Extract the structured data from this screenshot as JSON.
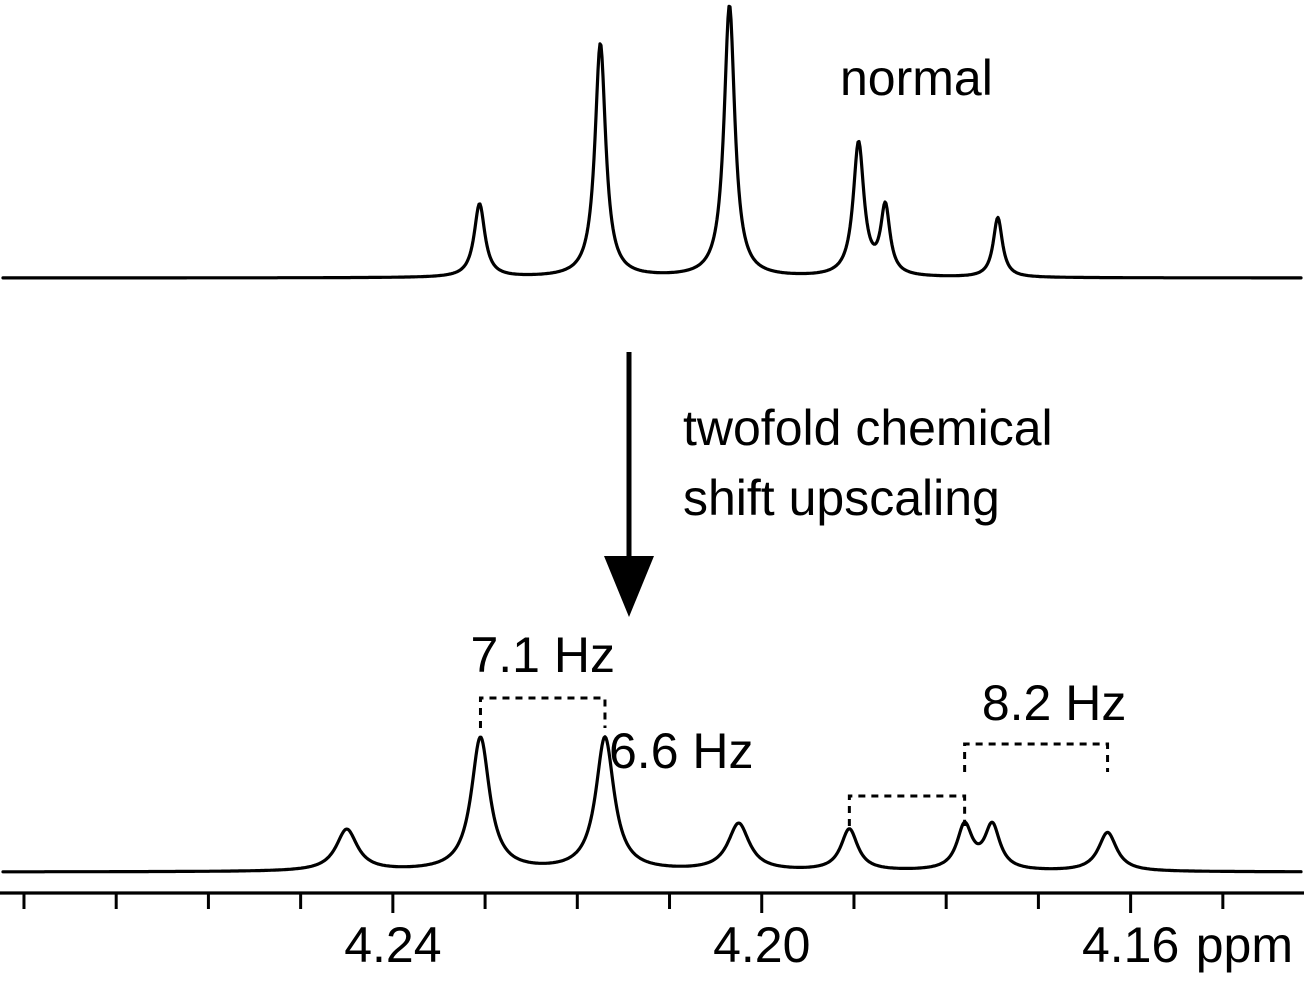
{
  "chart_data": {
    "type": "line",
    "x_unit": "ppm",
    "xlim": [
      4.2826,
      4.1412
    ],
    "xticks_major": [
      4.24,
      4.2,
      4.16
    ],
    "xticks_minor": [
      4.28,
      4.27,
      4.26,
      4.25,
      4.23,
      4.22,
      4.21,
      4.19,
      4.18,
      4.17,
      4.15,
      4.14
    ],
    "tick_labels": [
      "4.24",
      "4.20",
      "4.16"
    ],
    "xlabel": "ppm",
    "series": [
      {
        "name": "normal",
        "baseline": 0,
        "peaks": [
          {
            "x": 4.2306,
            "height": 0.27,
            "width": 0.0007
          },
          {
            "x": 4.2175,
            "height": 0.86,
            "width": 0.0007
          },
          {
            "x": 4.2035,
            "height": 1.0,
            "width": 0.0007
          },
          {
            "x": 4.1895,
            "height": 0.49,
            "width": 0.0007
          },
          {
            "x": 4.1866,
            "height": 0.25,
            "width": 0.0006
          },
          {
            "x": 4.1744,
            "height": 0.22,
            "width": 0.0006
          }
        ]
      },
      {
        "name": "twofold chemical shift upscaling",
        "baseline": 0,
        "peaks": [
          {
            "x": 4.245,
            "height": 0.15,
            "width": 0.0014
          },
          {
            "x": 4.2305,
            "height": 0.48,
            "width": 0.0012
          },
          {
            "x": 4.217,
            "height": 0.48,
            "width": 0.0012
          },
          {
            "x": 4.2025,
            "height": 0.17,
            "width": 0.0014
          },
          {
            "x": 4.1905,
            "height": 0.15,
            "width": 0.0011
          },
          {
            "x": 4.178,
            "height": 0.16,
            "width": 0.001
          },
          {
            "x": 4.175,
            "height": 0.16,
            "width": 0.001
          },
          {
            "x": 4.1625,
            "height": 0.14,
            "width": 0.0012
          }
        ]
      }
    ],
    "annotations": [
      {
        "text": "normal"
      },
      {
        "text": "twofold chemical\nshift upscaling",
        "lines": [
          "twofold chemical",
          "shift upscaling"
        ]
      },
      {
        "text": "7.1 Hz",
        "from": 4.2305,
        "to": 4.217
      },
      {
        "text": "6.6 Hz",
        "from": 4.1905,
        "to": 4.178
      },
      {
        "text": "8.2 Hz",
        "from": 4.178,
        "to": 4.1625
      }
    ]
  }
}
